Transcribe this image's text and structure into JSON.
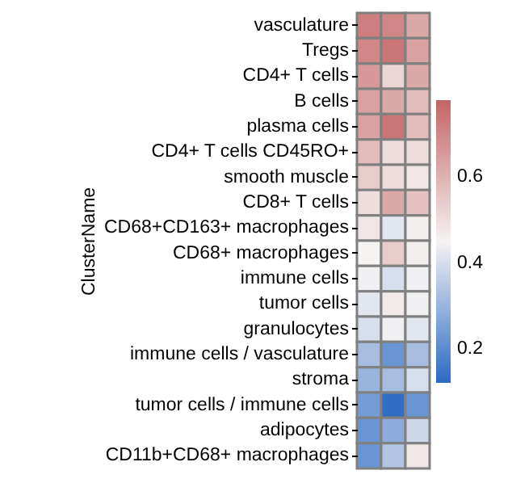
{
  "chart_data": {
    "type": "heatmap",
    "ylabel": "ClusterName",
    "categories": [
      null,
      null,
      null
    ],
    "y_categories": [
      "vasculature",
      "Tregs",
      "CD4+ T cells",
      "B cells",
      "plasma cells",
      "CD4+ T cells CD45RO+",
      "smooth muscle",
      "CD8+ T cells",
      "CD68+CD163+ macrophages",
      "CD68+ macrophages",
      "immune cells",
      "tumor cells",
      "granulocytes",
      "immune cells / vasculature",
      "stroma",
      "tumor cells / immune cells",
      "adipocytes",
      "CD11b+CD68+ macrophages"
    ],
    "cells": [
      [
        0.72,
        0.7,
        0.62
      ],
      [
        0.7,
        0.74,
        0.64
      ],
      [
        0.66,
        0.52,
        0.62
      ],
      [
        0.64,
        0.62,
        0.58
      ],
      [
        0.64,
        0.74,
        0.58
      ],
      [
        0.58,
        0.5,
        0.5
      ],
      [
        0.54,
        0.5,
        0.48
      ],
      [
        0.5,
        0.62,
        0.56
      ],
      [
        0.48,
        0.42,
        0.46
      ],
      [
        0.45,
        0.54,
        0.46
      ],
      [
        0.44,
        0.4,
        0.44
      ],
      [
        0.42,
        0.47,
        0.44
      ],
      [
        0.4,
        0.44,
        0.42
      ],
      [
        0.32,
        0.22,
        0.32
      ],
      [
        0.3,
        0.32,
        0.4
      ],
      [
        0.24,
        0.13,
        0.22
      ],
      [
        0.22,
        0.28,
        0.38
      ],
      [
        0.22,
        0.34,
        0.48
      ]
    ],
    "clim": [
      0.12,
      0.78
    ],
    "cticks": [
      0.2,
      0.4,
      0.6
    ],
    "tick_labels": "y"
  }
}
